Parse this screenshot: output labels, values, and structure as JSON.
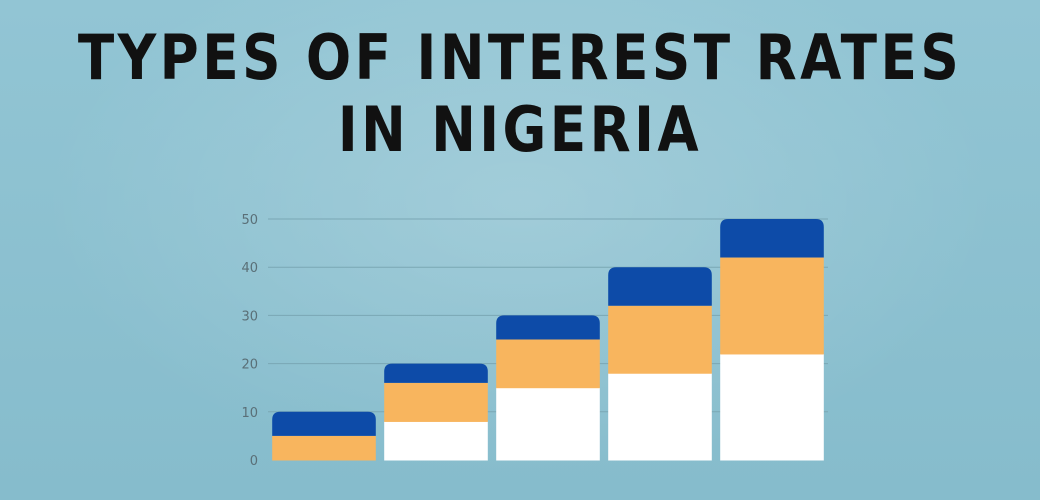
{
  "title": [
    "TYPES OF INTEREST RATES",
    "IN NIGERIA"
  ],
  "colors": {
    "background": "#8fc3d2",
    "seg_bottom": "#ffffff",
    "seg_middle": "#f8b55e",
    "seg_top": "#0d4ba8",
    "gridline": "#7aa7b4",
    "tick": "#5a6f77"
  },
  "chart_data": {
    "type": "bar",
    "stacked": true,
    "categories": [
      "",
      "",
      "",
      "",
      ""
    ],
    "series": [
      {
        "values": [
          0,
          8,
          15,
          18,
          22
        ]
      },
      {
        "values": [
          5,
          8,
          10,
          14,
          20
        ]
      },
      {
        "values": [
          5,
          4,
          5,
          8,
          8
        ]
      }
    ],
    "ylim": [
      0,
      50
    ],
    "yticks": [
      0,
      10,
      20,
      30,
      40,
      50
    ],
    "grid": true,
    "legend": "none"
  }
}
